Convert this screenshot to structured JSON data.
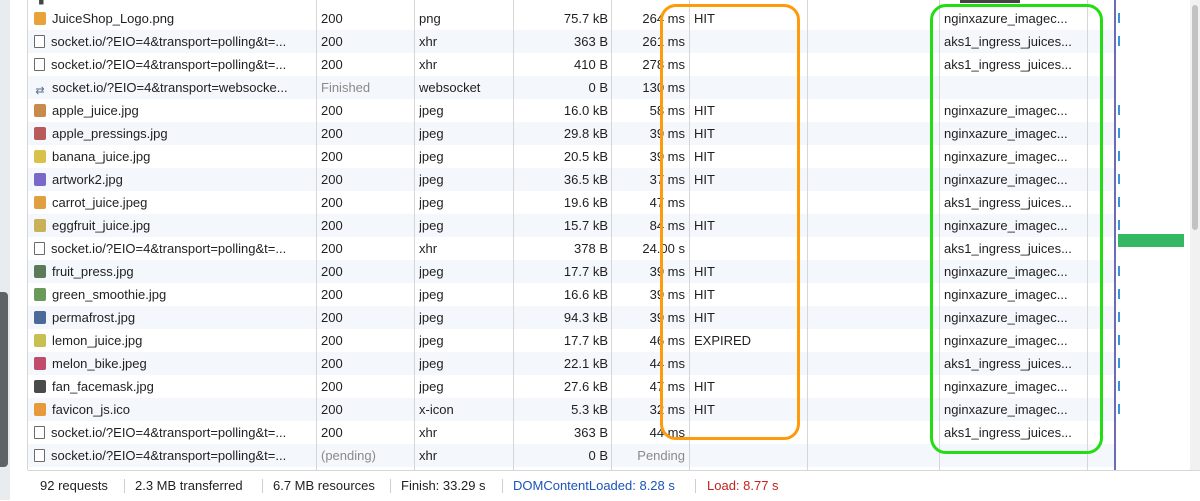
{
  "requests": [
    {
      "icon": "image",
      "icon_color": "#e8a23a",
      "name": "JuiceShop_Logo.png",
      "status": "200",
      "type": "png",
      "size": "75.7 kB",
      "time": "264 ms",
      "cache": "HIT",
      "server": "nginxazure_imagec..."
    },
    {
      "icon": "doc",
      "name": "socket.io/?EIO=4&transport=polling&t=...",
      "status": "200",
      "type": "xhr",
      "size": "363 B",
      "time": "261 ms",
      "cache": "",
      "server": "aks1_ingress_juices..."
    },
    {
      "icon": "doc",
      "name": "socket.io/?EIO=4&transport=polling&t=...",
      "status": "200",
      "type": "xhr",
      "size": "410 B",
      "time": "278 ms",
      "cache": "",
      "server": "aks1_ingress_juices..."
    },
    {
      "icon": "websocket",
      "name": "socket.io/?EIO=4&transport=websocke...",
      "status": "Finished",
      "status_muted": true,
      "type": "websocket",
      "size": "0 B",
      "time": "130 ms",
      "cache": "",
      "server": ""
    },
    {
      "icon": "image",
      "icon_color": "#c98a4b",
      "name": "apple_juice.jpg",
      "status": "200",
      "type": "jpeg",
      "size": "16.0 kB",
      "time": "58 ms",
      "cache": "HIT",
      "server": "nginxazure_imagec..."
    },
    {
      "icon": "image",
      "icon_color": "#b85a5a",
      "name": "apple_pressings.jpg",
      "status": "200",
      "type": "jpeg",
      "size": "29.8 kB",
      "time": "39 ms",
      "cache": "HIT",
      "server": "nginxazure_imagec..."
    },
    {
      "icon": "image",
      "icon_color": "#d9c24a",
      "name": "banana_juice.jpg",
      "status": "200",
      "type": "jpeg",
      "size": "20.5 kB",
      "time": "39 ms",
      "cache": "HIT",
      "server": "nginxazure_imagec..."
    },
    {
      "icon": "image",
      "icon_color": "#7a68c8",
      "name": "artwork2.jpg",
      "status": "200",
      "type": "jpeg",
      "size": "36.5 kB",
      "time": "37 ms",
      "cache": "HIT",
      "server": "nginxazure_imagec..."
    },
    {
      "icon": "image",
      "icon_color": "#e0a040",
      "name": "carrot_juice.jpeg",
      "status": "200",
      "type": "jpeg",
      "size": "19.6 kB",
      "time": "47 ms",
      "cache": "",
      "server": "aks1_ingress_juices..."
    },
    {
      "icon": "image",
      "icon_color": "#c9b15a",
      "name": "eggfruit_juice.jpg",
      "status": "200",
      "type": "jpeg",
      "size": "15.7 kB",
      "time": "84 ms",
      "cache": "HIT",
      "server": "nginxazure_imagec..."
    },
    {
      "icon": "doc",
      "name": "socket.io/?EIO=4&transport=polling&t=...",
      "status": "200",
      "type": "xhr",
      "size": "378 B",
      "time": "24.00 s",
      "cache": "",
      "server": "aks1_ingress_juices..."
    },
    {
      "icon": "image",
      "icon_color": "#5a7a5a",
      "name": "fruit_press.jpg",
      "status": "200",
      "type": "jpeg",
      "size": "17.7 kB",
      "time": "39 ms",
      "cache": "HIT",
      "server": "nginxazure_imagec..."
    },
    {
      "icon": "image",
      "icon_color": "#6a9a5a",
      "name": "green_smoothie.jpg",
      "status": "200",
      "type": "jpeg",
      "size": "16.6 kB",
      "time": "39 ms",
      "cache": "HIT",
      "server": "nginxazure_imagec..."
    },
    {
      "icon": "image",
      "icon_color": "#4a6a9a",
      "name": "permafrost.jpg",
      "status": "200",
      "type": "jpeg",
      "size": "94.3 kB",
      "time": "39 ms",
      "cache": "HIT",
      "server": "nginxazure_imagec..."
    },
    {
      "icon": "image",
      "icon_color": "#c8c050",
      "name": "lemon_juice.jpg",
      "status": "200",
      "type": "jpeg",
      "size": "17.7 kB",
      "time": "46 ms",
      "cache": "EXPIRED",
      "server": "nginxazure_imagec..."
    },
    {
      "icon": "image",
      "icon_color": "#c04a6a",
      "name": "melon_bike.jpeg",
      "status": "200",
      "type": "jpeg",
      "size": "22.1 kB",
      "time": "44 ms",
      "cache": "",
      "server": "aks1_ingress_juices..."
    },
    {
      "icon": "image",
      "icon_color": "#4a4a4a",
      "name": "fan_facemask.jpg",
      "status": "200",
      "type": "jpeg",
      "size": "27.6 kB",
      "time": "47 ms",
      "cache": "HIT",
      "server": "nginxazure_imagec..."
    },
    {
      "icon": "image",
      "icon_color": "#e89a3a",
      "name": "favicon_js.ico",
      "status": "200",
      "type": "x-icon",
      "size": "5.3 kB",
      "time": "32 ms",
      "cache": "HIT",
      "server": "nginxazure_imagec..."
    },
    {
      "icon": "doc",
      "name": "socket.io/?EIO=4&transport=polling&t=...",
      "status": "200",
      "type": "xhr",
      "size": "363 B",
      "time": "44 ms",
      "cache": "",
      "server": "aks1_ingress_juices..."
    },
    {
      "icon": "doc",
      "name": "socket.io/?EIO=4&transport=polling&t=...",
      "status": "(pending)",
      "status_muted": true,
      "type": "xhr",
      "size": "0 B",
      "time": "Pending",
      "time_muted": true,
      "cache": "",
      "server": ""
    }
  ],
  "summary": {
    "requests": "92 requests",
    "transferred": "2.3 MB transferred",
    "resources": "6.7 MB resources",
    "finish": "Finish: 33.29 s",
    "dom_content_loaded": "DOMContentLoaded: 8.28 s",
    "load": "Load: 8.77 s"
  },
  "colors": {
    "highlight_cache": "#ff9a0a",
    "highlight_server": "#22dd11",
    "dom_content_loaded": "#1a55b8",
    "load": "#c5221f"
  }
}
